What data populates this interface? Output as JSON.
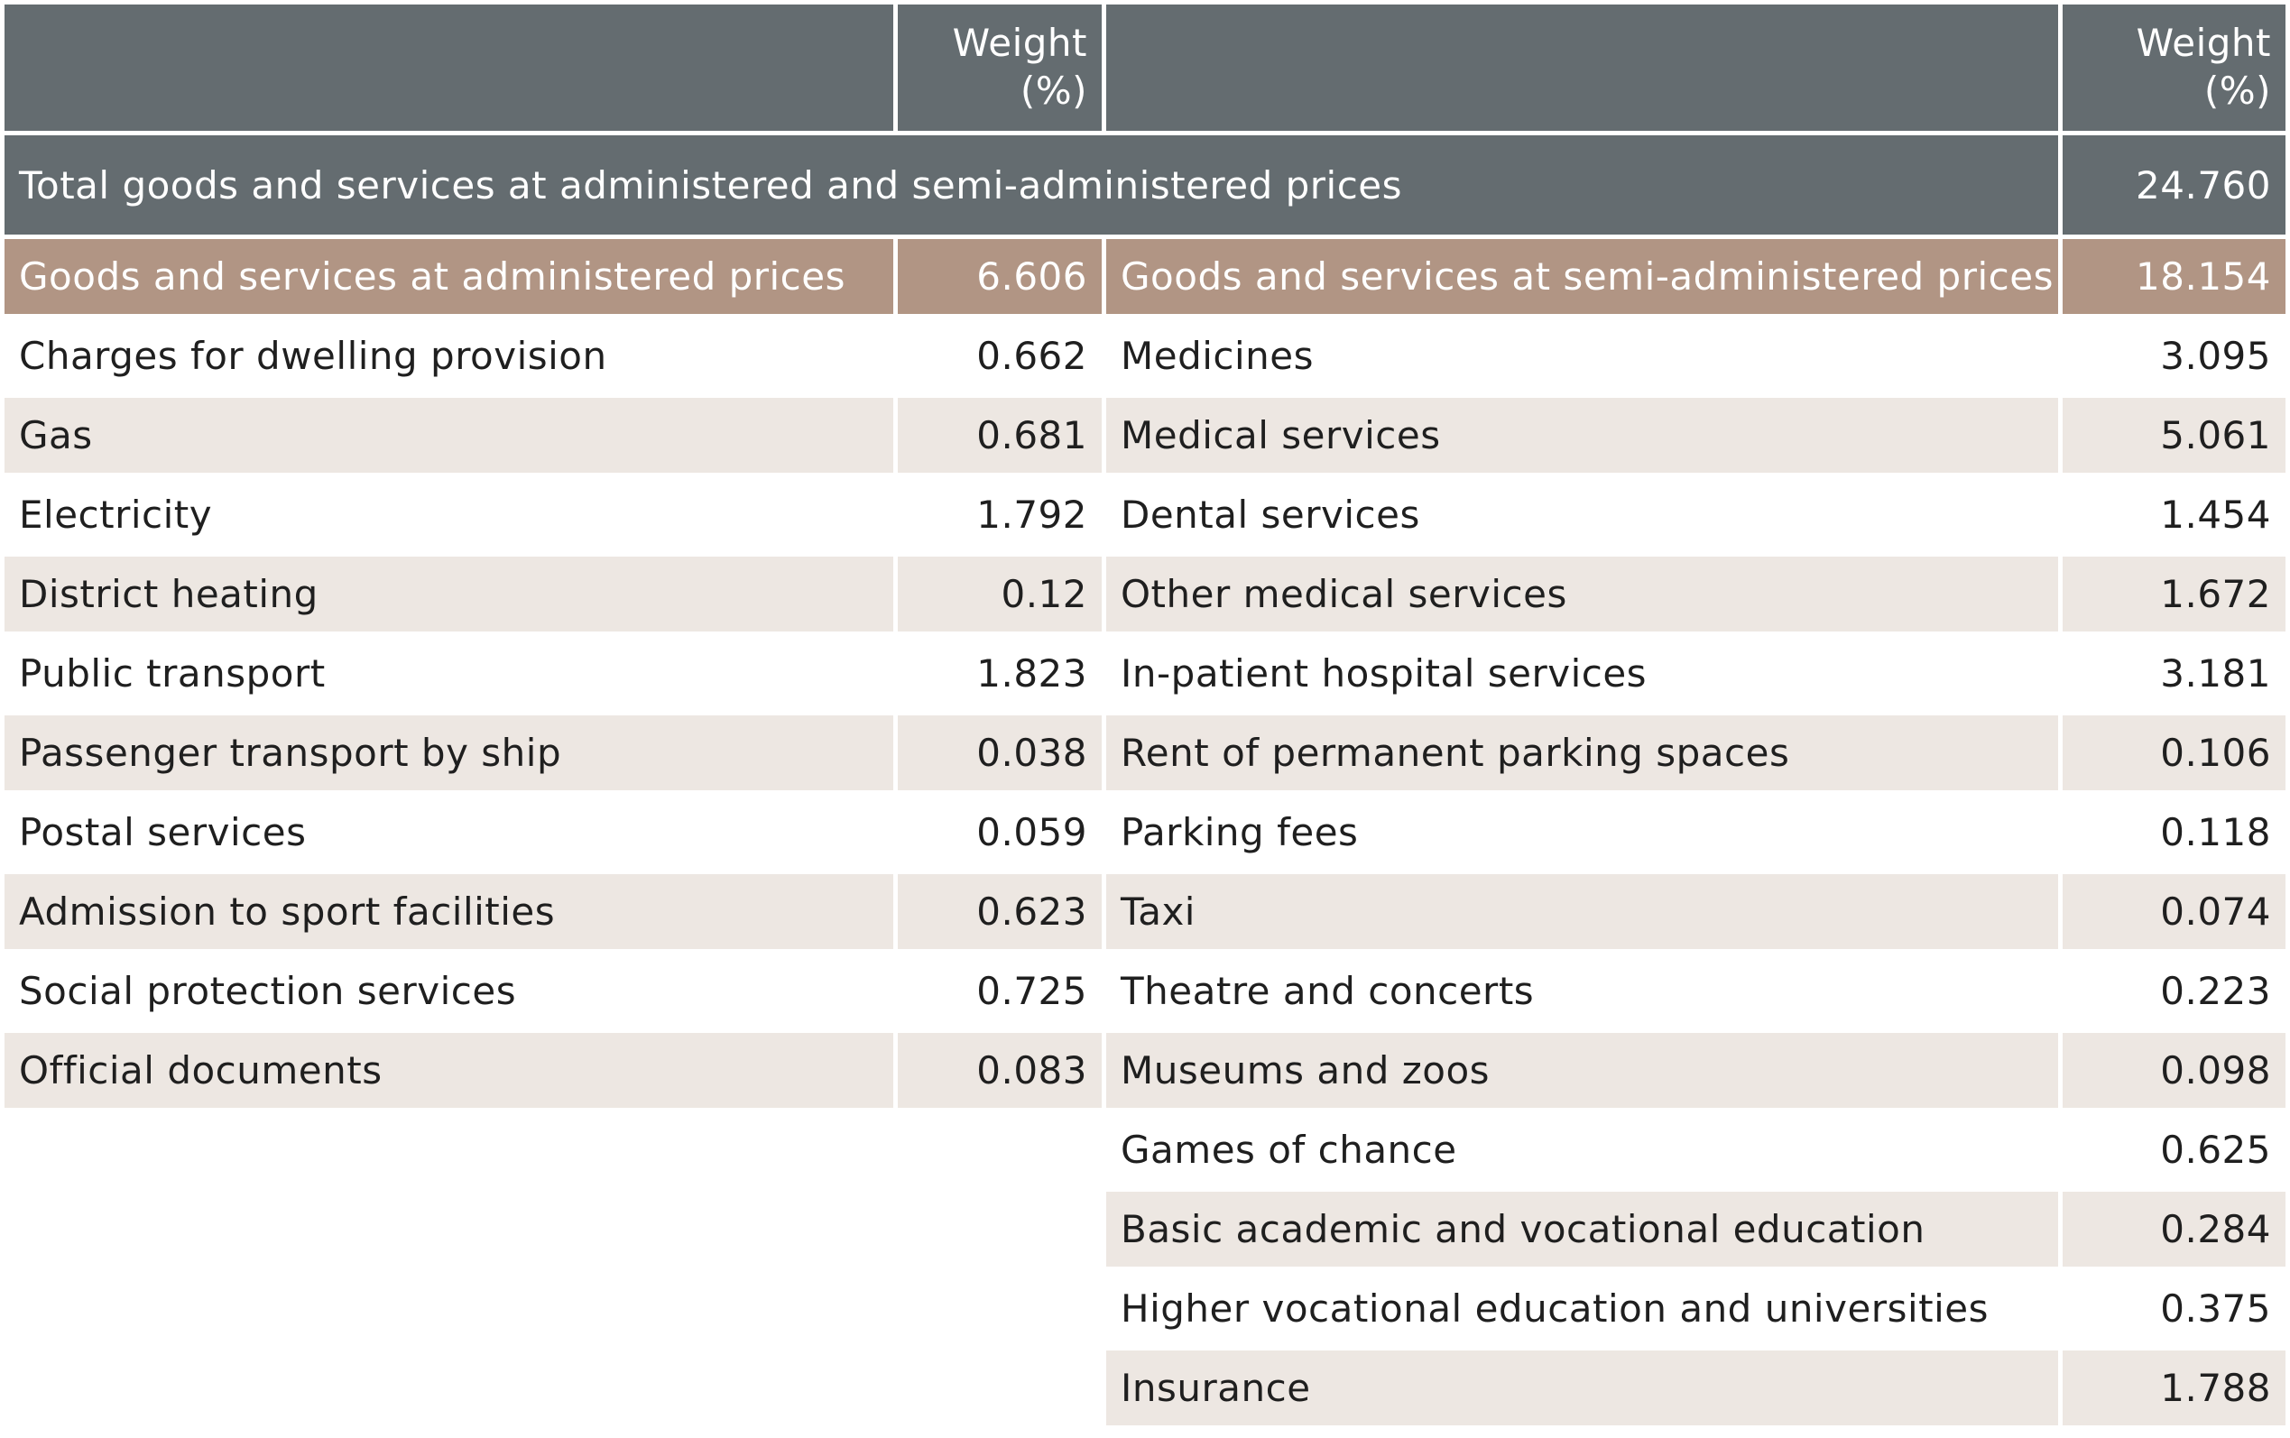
{
  "header": {
    "left_label": "",
    "left_weight_line1": "Weight",
    "left_weight_line2": "(%)",
    "right_label": "",
    "right_weight_line1": "Weight",
    "right_weight_line2": "(%)"
  },
  "total": {
    "label": "Total goods and services at administered and semi-administered prices",
    "value": "24.760"
  },
  "administered": {
    "label": "Goods and services at administered prices",
    "value": "6.606",
    "items": [
      {
        "label": "Charges for dwelling provision",
        "value": "0.662"
      },
      {
        "label": "Gas",
        "value": "0.681"
      },
      {
        "label": "Electricity",
        "value": "1.792"
      },
      {
        "label": "District heating",
        "value": "0.12"
      },
      {
        "label": "Public transport",
        "value": "1.823"
      },
      {
        "label": "Passenger transport by ship",
        "value": "0.038"
      },
      {
        "label": "Postal services",
        "value": "0.059"
      },
      {
        "label": "Admission to sport facilities",
        "value": "0.623"
      },
      {
        "label": "Social protection services",
        "value": "0.725"
      },
      {
        "label": "Official documents",
        "value": "0.083"
      }
    ]
  },
  "semi_administered": {
    "label": "Goods and services at semi-administered prices",
    "value": "18.154",
    "items": [
      {
        "label": "Medicines",
        "value": "3.095"
      },
      {
        "label": "Medical services",
        "value": "5.061"
      },
      {
        "label": "Dental services",
        "value": "1.454"
      },
      {
        "label": "Other medical services",
        "value": "1.672"
      },
      {
        "label": "In-patient hospital services",
        "value": "3.181"
      },
      {
        "label": "Rent of permanent parking spaces",
        "value": "0.106"
      },
      {
        "label": "Parking fees",
        "value": "0.118"
      },
      {
        "label": "Taxi",
        "value": "0.074"
      },
      {
        "label": "Theatre and concerts",
        "value": "0.223"
      },
      {
        "label": "Museums and zoos",
        "value": "0.098"
      },
      {
        "label": "Games of chance",
        "value": "0.625"
      },
      {
        "label": "Basic academic and vocational education",
        "value": "0.284"
      },
      {
        "label": "Higher vocational education and universities",
        "value": "0.375"
      },
      {
        "label": "Insurance",
        "value": "1.788"
      }
    ]
  },
  "colors": {
    "header_bg": "#646c70",
    "subheader_bg": "#b19584",
    "stripe_bg": "#ede7e2"
  }
}
